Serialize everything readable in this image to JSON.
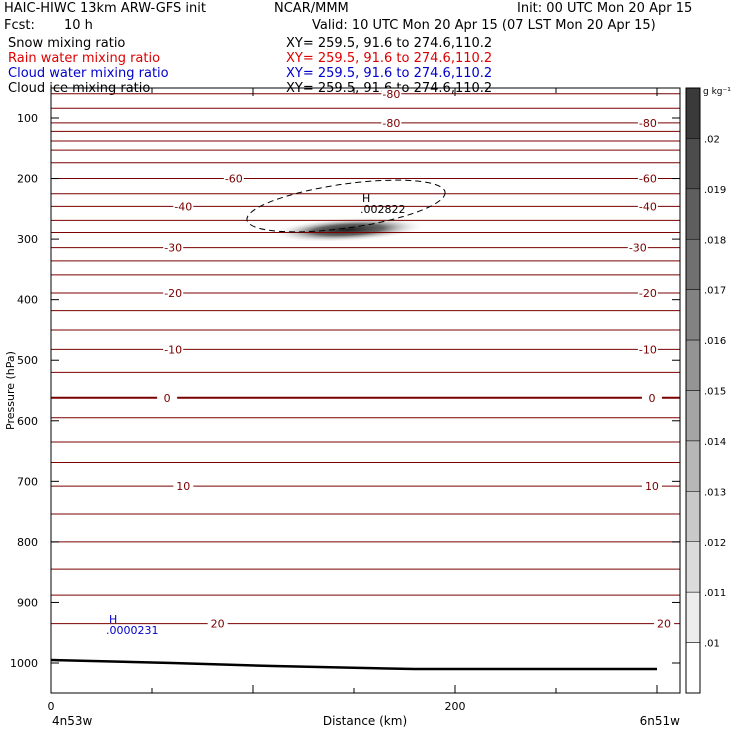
{
  "header": {
    "title": "HAIC-HIWC 13km ARW-GFS init",
    "org": "NCAR/MMM",
    "init": "Init: 00 UTC Mon 20 Apr 15",
    "fcst_label": "Fcst:",
    "fcst_value": "10 h",
    "valid": "Valid: 10 UTC Mon 20 Apr 15 (07 LST Mon 20 Apr 15)",
    "fields": [
      {
        "name": "Snow mixing ratio",
        "xy": "XY= 259.5, 91.6 to 274.6,110.2",
        "color": "#000000"
      },
      {
        "name": "Rain water mixing ratio",
        "xy": "XY= 259.5, 91.6 to 274.6,110.2",
        "color": "#dd0000"
      },
      {
        "name": "Cloud water mixing ratio",
        "xy": "XY= 259.5, 91.6 to 274.6,110.2",
        "color": "#0000cc"
      },
      {
        "name": "Cloud ice mixing ratio",
        "xy": "XY= 259.5, 91.6 to 274.6,110.2",
        "color": "#000000"
      }
    ]
  },
  "chart_data": {
    "type": "contour cross-section",
    "xlabel": "Distance (km)",
    "ylabel": "Pressure (hPa)",
    "xlim": [
      0,
      300
    ],
    "ylim": [
      1050,
      50
    ],
    "x_ticks": [
      0,
      200
    ],
    "y_ticks": [
      100,
      200,
      300,
      400,
      500,
      600,
      700,
      800,
      900,
      1000
    ],
    "x_endpoint_labels": [
      "4n53w",
      "6n51w"
    ],
    "temperature_contours": {
      "color": "#7a0000",
      "interval": 5,
      "labeled_values": [
        -80,
        -60,
        -40,
        -30,
        -20,
        -10,
        0,
        10,
        20
      ],
      "levels_hpa": [
        60,
        84,
        108,
        122,
        138,
        153,
        174,
        200,
        225,
        246,
        269,
        289,
        314,
        336,
        359,
        389,
        418,
        450,
        482,
        520,
        562,
        595,
        635,
        669,
        708,
        754,
        800,
        845,
        888,
        935
      ]
    },
    "cloud_ice_max": {
      "marker": "H",
      "value": ".002822",
      "x_km": 157,
      "p_hpa": 235
    },
    "cloud_water_max": {
      "marker": "H",
      "value": ".0000231",
      "x_km": 30,
      "p_hpa": 925
    },
    "ground_surface_hpa": [
      [
        0,
        995
      ],
      [
        60,
        1000
      ],
      [
        110,
        1005
      ],
      [
        180,
        1010
      ],
      [
        300,
        1010
      ]
    ],
    "colorbar": {
      "unit": "g kg⁻¹",
      "levels": [
        ".01",
        ".011",
        ".012",
        ".013",
        ".014",
        ".015",
        ".016",
        ".017",
        ".018",
        ".019",
        ".02"
      ],
      "color_low": "#ffffff",
      "color_high": "#3a3a3a"
    }
  }
}
